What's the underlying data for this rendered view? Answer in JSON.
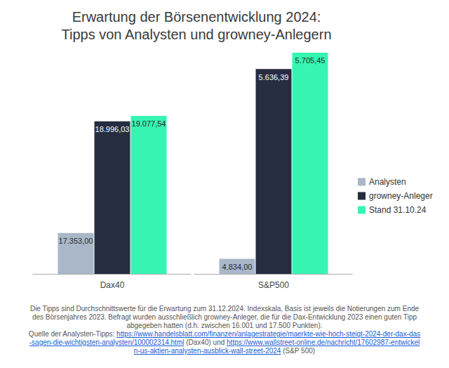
{
  "chart_data": [
    {
      "type": "bar",
      "title": "Erwartung der Börsenentwicklung 2024:\nTipps von Analysten und growney-Anlegern",
      "categories": [
        "Dax40"
      ],
      "series": [
        {
          "name": "Analysten",
          "color": "#a9b7c9",
          "values": [
            17353.0
          ],
          "value_labels": [
            "17.353,00"
          ]
        },
        {
          "name": "growney-Anleger",
          "color": "#262d40",
          "values": [
            18996.03
          ],
          "value_labels": [
            "18.996,03"
          ]
        },
        {
          "name": "Stand 31.10.24",
          "color": "#36f5b2",
          "values": [
            19077.54
          ],
          "value_labels": [
            "19.077,54"
          ]
        }
      ],
      "ylim": [
        16750,
        20060
      ],
      "yticks": [
        16750,
        20060
      ],
      "tick_labels": "x",
      "grid": false,
      "data_labels": true,
      "annotations": [
        [
          "Die Tipps sind Durchschnittswerte für die Erwartung zum 31.12.2024. Indexskala, Basis ist jeweils die Notierungen zum Ende des Börsenjahres 2023. Befragt wurden ausschließlich growney-Anleger, die für die Dax-Entwicklung 2023 einen guten Tipp abgegeben hatten (d.h. zwischen 16.001 und 17.500 Punkten)."
        ],
        [
          "Quelle der Analysten-Tipps: ",
          {
            "link": "https://www.handelsblatt.com/finanzen/anlagestrategie/maerkte-wie-hoch-steigt-2024-der-dax-das-sagen-die-wichtigsten-analysten/100002314.html"
          },
          " (Dax40) und ",
          {
            "link": "https://www.wallstreet-online.de/nachricht/17602987-entwickeln-us-aktien-analysten-ausblick-wall-street-2024"
          },
          " (S&P 500)"
        ]
      ]
    },
    {
      "type": "bar",
      "categories": [
        "S&P500"
      ],
      "series": [
        {
          "name": "Analysten",
          "color": "#a9b7c9",
          "values": [
            4834.0
          ],
          "value_labels": [
            "4.834,00"
          ]
        },
        {
          "name": "growney-Anleger",
          "color": "#262d40",
          "values": [
            5636.39
          ],
          "value_labels": [
            "5.636,39"
          ]
        },
        {
          "name": "Stand 31.10.24",
          "color": "#36f5b2",
          "values": [
            5705.45
          ],
          "value_labels": [
            "5.705,45"
          ]
        }
      ],
      "ylim": [
        4770,
        5720
      ],
      "yticks": [
        4770,
        5720
      ],
      "tick_labels": "x",
      "grid": false,
      "data_labels": true,
      "legend": "right"
    }
  ]
}
